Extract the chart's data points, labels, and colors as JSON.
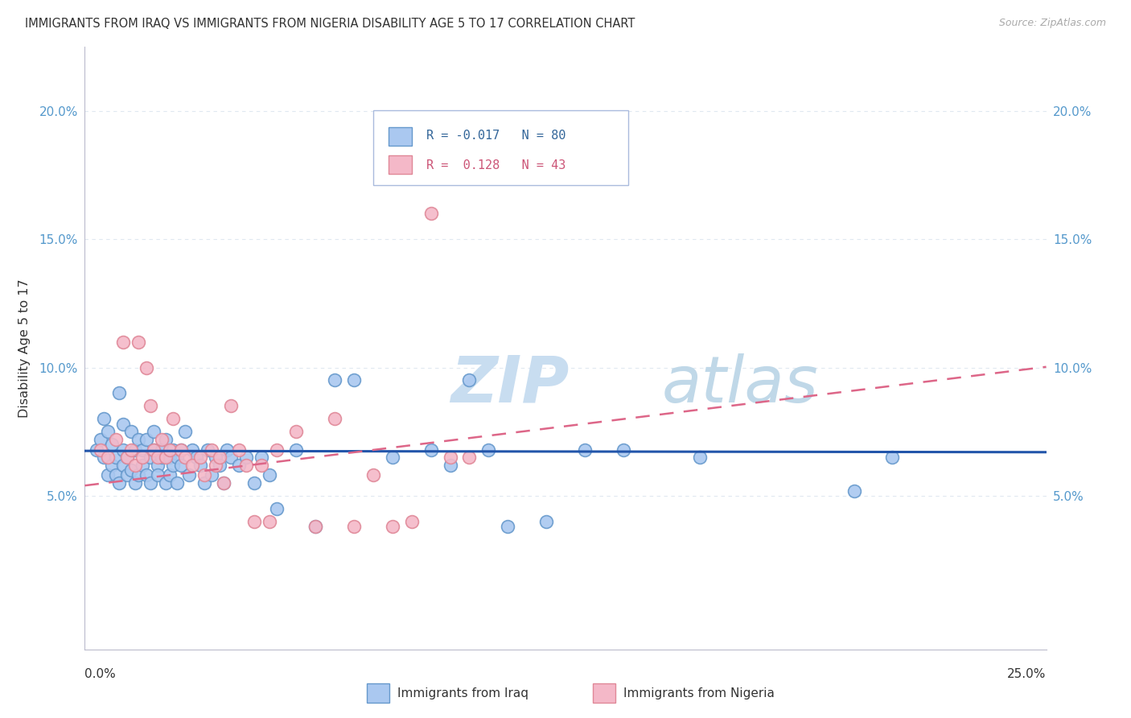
{
  "title": "IMMIGRANTS FROM IRAQ VS IMMIGRANTS FROM NIGERIA DISABILITY AGE 5 TO 17 CORRELATION CHART",
  "source": "Source: ZipAtlas.com",
  "ylabel": "Disability Age 5 to 17",
  "yaxis_ticks": [
    0.05,
    0.1,
    0.15,
    0.2
  ],
  "yaxis_labels": [
    "5.0%",
    "10.0%",
    "15.0%",
    "20.0%"
  ],
  "xlim": [
    0.0,
    0.25
  ],
  "ylim": [
    -0.01,
    0.225
  ],
  "iraq_R": -0.017,
  "iraq_N": 80,
  "nigeria_R": 0.128,
  "nigeria_N": 43,
  "iraq_color": "#aac8f0",
  "iraq_edge_color": "#6699cc",
  "nigeria_color": "#f4b8c8",
  "nigeria_edge_color": "#e08898",
  "iraq_line_color": "#2255aa",
  "nigeria_line_color": "#dd6688",
  "legend_border_color": "#aabbdd",
  "background_color": "#ffffff",
  "grid_color": "#e0e8f0",
  "watermark_zip_color": "#c8ddf0",
  "watermark_atlas_color": "#c0d8e8",
  "iraq_intercept": 0.0675,
  "iraq_slope": -0.002,
  "nigeria_intercept": 0.054,
  "nigeria_slope": 0.185,
  "iraq_points_x": [
    0.003,
    0.004,
    0.005,
    0.005,
    0.006,
    0.006,
    0.007,
    0.007,
    0.008,
    0.008,
    0.009,
    0.009,
    0.01,
    0.01,
    0.01,
    0.011,
    0.011,
    0.012,
    0.012,
    0.013,
    0.013,
    0.014,
    0.014,
    0.015,
    0.015,
    0.016,
    0.016,
    0.017,
    0.017,
    0.018,
    0.018,
    0.019,
    0.019,
    0.02,
    0.02,
    0.021,
    0.021,
    0.022,
    0.022,
    0.023,
    0.023,
    0.024,
    0.024,
    0.025,
    0.025,
    0.026,
    0.027,
    0.028,
    0.029,
    0.03,
    0.031,
    0.032,
    0.033,
    0.034,
    0.035,
    0.036,
    0.037,
    0.038,
    0.04,
    0.042,
    0.044,
    0.046,
    0.048,
    0.05,
    0.055,
    0.06,
    0.065,
    0.07,
    0.08,
    0.09,
    0.095,
    0.1,
    0.105,
    0.11,
    0.12,
    0.13,
    0.14,
    0.16,
    0.2,
    0.21
  ],
  "iraq_points_y": [
    0.068,
    0.072,
    0.065,
    0.08,
    0.058,
    0.075,
    0.062,
    0.07,
    0.065,
    0.058,
    0.09,
    0.055,
    0.068,
    0.062,
    0.078,
    0.058,
    0.065,
    0.075,
    0.06,
    0.068,
    0.055,
    0.072,
    0.058,
    0.068,
    0.062,
    0.058,
    0.072,
    0.065,
    0.055,
    0.068,
    0.075,
    0.062,
    0.058,
    0.068,
    0.065,
    0.055,
    0.072,
    0.065,
    0.058,
    0.068,
    0.062,
    0.065,
    0.055,
    0.068,
    0.062,
    0.075,
    0.058,
    0.068,
    0.065,
    0.062,
    0.055,
    0.068,
    0.058,
    0.065,
    0.062,
    0.055,
    0.068,
    0.065,
    0.062,
    0.065,
    0.055,
    0.065,
    0.058,
    0.045,
    0.068,
    0.038,
    0.095,
    0.095,
    0.065,
    0.068,
    0.062,
    0.095,
    0.068,
    0.038,
    0.04,
    0.068,
    0.068,
    0.065,
    0.052,
    0.065
  ],
  "nigeria_points_x": [
    0.004,
    0.006,
    0.008,
    0.01,
    0.011,
    0.012,
    0.013,
    0.014,
    0.015,
    0.016,
    0.017,
    0.018,
    0.019,
    0.02,
    0.021,
    0.022,
    0.023,
    0.025,
    0.026,
    0.028,
    0.03,
    0.031,
    0.033,
    0.034,
    0.035,
    0.036,
    0.038,
    0.04,
    0.042,
    0.044,
    0.046,
    0.048,
    0.05,
    0.055,
    0.06,
    0.065,
    0.07,
    0.075,
    0.08,
    0.085,
    0.09,
    0.095,
    0.1
  ],
  "nigeria_points_y": [
    0.068,
    0.065,
    0.072,
    0.11,
    0.065,
    0.068,
    0.062,
    0.11,
    0.065,
    0.1,
    0.085,
    0.068,
    0.065,
    0.072,
    0.065,
    0.068,
    0.08,
    0.068,
    0.065,
    0.062,
    0.065,
    0.058,
    0.068,
    0.062,
    0.065,
    0.055,
    0.085,
    0.068,
    0.062,
    0.04,
    0.062,
    0.04,
    0.068,
    0.075,
    0.038,
    0.08,
    0.038,
    0.058,
    0.038,
    0.04,
    0.16,
    0.065,
    0.065
  ]
}
